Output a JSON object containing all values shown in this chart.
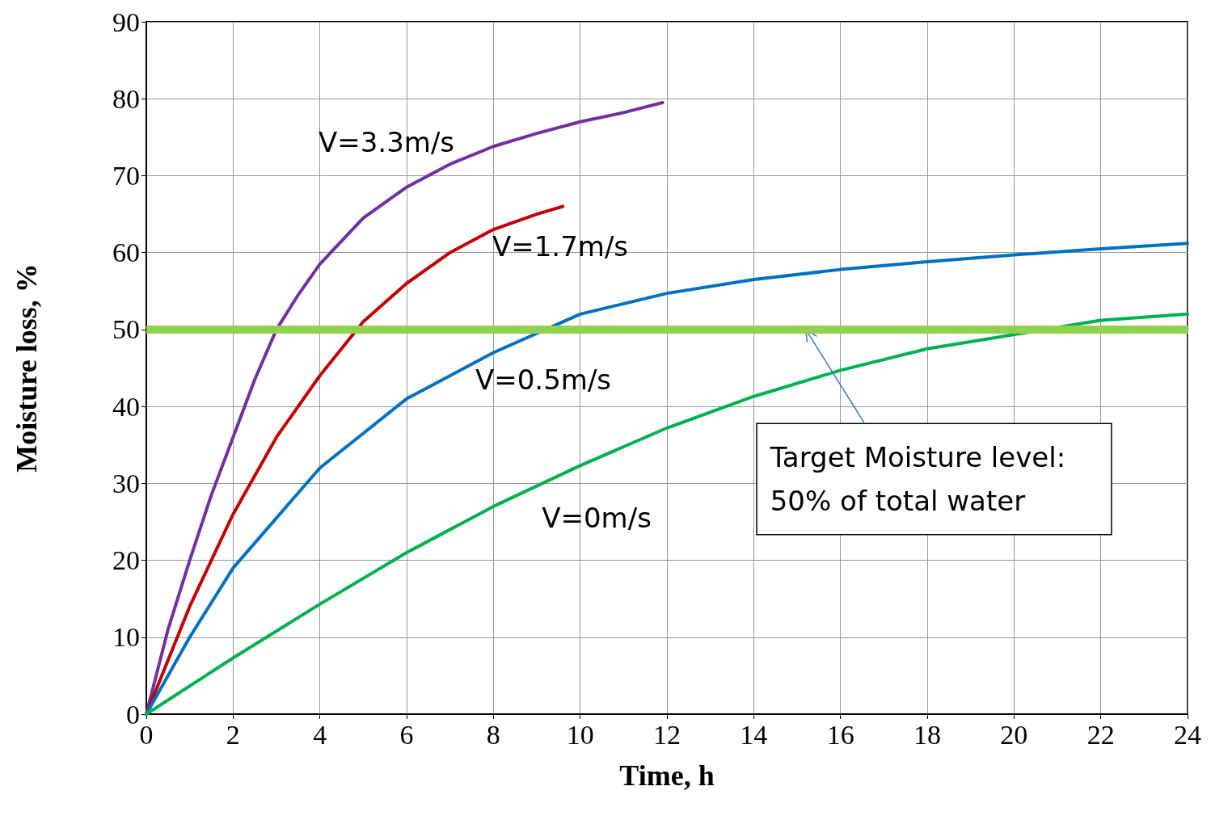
{
  "chart_data": {
    "type": "line",
    "xlabel": "Time, h",
    "ylabel": "Moisture loss, %",
    "xlim": [
      0,
      24
    ],
    "xticks": [
      0,
      2,
      4,
      6,
      8,
      10,
      12,
      14,
      16,
      18,
      20,
      22,
      24
    ],
    "ylim": [
      0,
      90
    ],
    "yticks": [
      0,
      10,
      20,
      30,
      40,
      50,
      60,
      70,
      80,
      90
    ],
    "grid": true,
    "marker": "none",
    "line_style": "solid",
    "series": [
      {
        "name": "V=3.3m/s",
        "color": "#7030a0",
        "x": [
          0,
          0.5,
          1,
          1.5,
          2,
          2.5,
          3,
          3.5,
          4,
          5,
          6,
          7,
          8,
          9,
          10,
          11,
          11.9
        ],
        "values": [
          0,
          11,
          20,
          28.5,
          36,
          43.5,
          50,
          54.5,
          58.5,
          64.5,
          68.5,
          71.5,
          73.8,
          75.5,
          77,
          78.2,
          79.5
        ]
      },
      {
        "name": "V=1.7m/s",
        "color": "#c00000",
        "x": [
          0,
          1,
          2,
          3,
          4,
          5,
          6,
          7,
          8,
          9,
          9.6
        ],
        "values": [
          0,
          14,
          26,
          36,
          44,
          51,
          56,
          60,
          63,
          65,
          66
        ]
      },
      {
        "name": "V=0.5m/s",
        "color": "#0070c0",
        "x": [
          0,
          1,
          2,
          4,
          6,
          8,
          10,
          12,
          14,
          16,
          18,
          20,
          22,
          24
        ],
        "values": [
          0,
          10,
          19,
          32,
          41,
          47,
          52,
          54.7,
          56.5,
          57.8,
          58.8,
          59.7,
          60.5,
          61.2
        ]
      },
      {
        "name": "V=0m/s",
        "color": "#00b050",
        "x": [
          0,
          2,
          4,
          6,
          8,
          10,
          12,
          14,
          16,
          18,
          22,
          24
        ],
        "values": [
          0,
          7.3,
          14.3,
          21,
          27,
          32.3,
          37.2,
          41.3,
          44.7,
          47.5,
          51.2,
          52
        ]
      }
    ],
    "ref_lines": [
      {
        "axis": "y",
        "value": 50,
        "color": "#92d050"
      }
    ],
    "annotations": [
      {
        "text": "Target Moisture level:\n50% of total water",
        "x": 15.2,
        "y": 50
      }
    ]
  }
}
